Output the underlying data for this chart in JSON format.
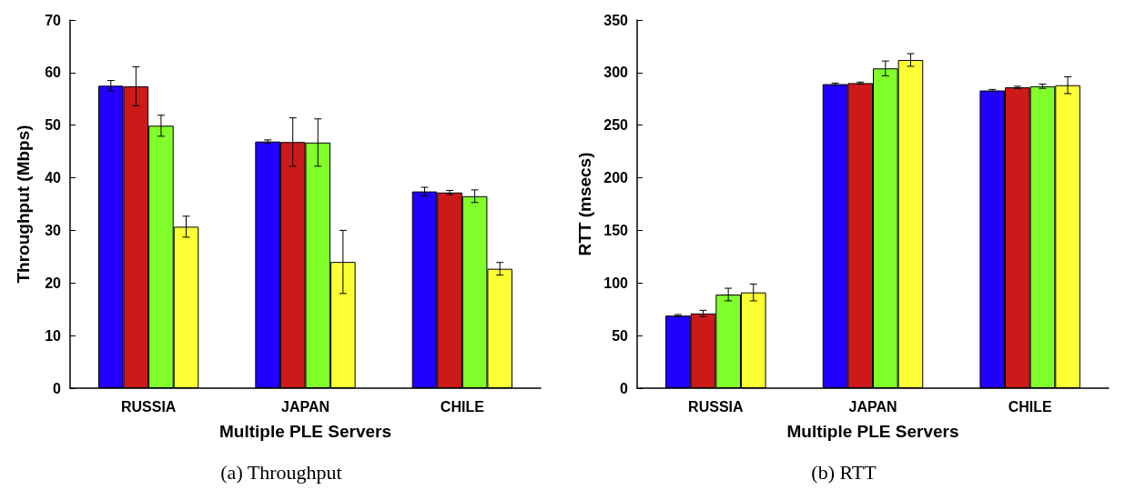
{
  "chart_data": [
    {
      "type": "bar",
      "title": "(a) Throughput",
      "xlabel": "Multiple PLE Servers",
      "ylabel": "Throughput (Mbps)",
      "categories": [
        "RUSSIA",
        "JAPAN",
        "CHILE"
      ],
      "series": [
        {
          "color": "#2200ff",
          "values": [
            57.5,
            46.9,
            37.4
          ],
          "errors": [
            1.0,
            0.3,
            0.8
          ]
        },
        {
          "color": "#cc1a1a",
          "values": [
            57.4,
            46.8,
            37.2
          ],
          "errors": [
            3.7,
            4.6,
            0.4
          ]
        },
        {
          "color": "#80ff2a",
          "values": [
            49.9,
            46.7,
            36.5
          ],
          "errors": [
            2.0,
            4.5,
            1.2
          ]
        },
        {
          "color": "#fcff33",
          "values": [
            30.7,
            24.0,
            22.7
          ],
          "errors": [
            2.0,
            6.0,
            1.2
          ]
        }
      ],
      "ylim": [
        0,
        70
      ],
      "yticks": [
        0,
        10,
        20,
        30,
        40,
        50,
        60,
        70
      ]
    },
    {
      "type": "bar",
      "title": "(b) RTT",
      "xlabel": "Multiple PLE Servers",
      "ylabel": "RTT (msecs)",
      "categories": [
        "RUSSIA",
        "JAPAN",
        "CHILE"
      ],
      "series": [
        {
          "color": "#2200ff",
          "values": [
            69,
            289,
            283
          ],
          "errors": [
            1,
            1,
            1
          ]
        },
        {
          "color": "#cc1a1a",
          "values": [
            71,
            290,
            286
          ],
          "errors": [
            3,
            1,
            1
          ]
        },
        {
          "color": "#80ff2a",
          "values": [
            89,
            304,
            287
          ],
          "errors": [
            6,
            7,
            2
          ]
        },
        {
          "color": "#fcff33",
          "values": [
            91,
            312,
            288
          ],
          "errors": [
            8,
            6,
            8
          ]
        }
      ],
      "ylim": [
        0,
        350
      ],
      "yticks": [
        0,
        50,
        100,
        150,
        200,
        250,
        300,
        350
      ]
    }
  ]
}
